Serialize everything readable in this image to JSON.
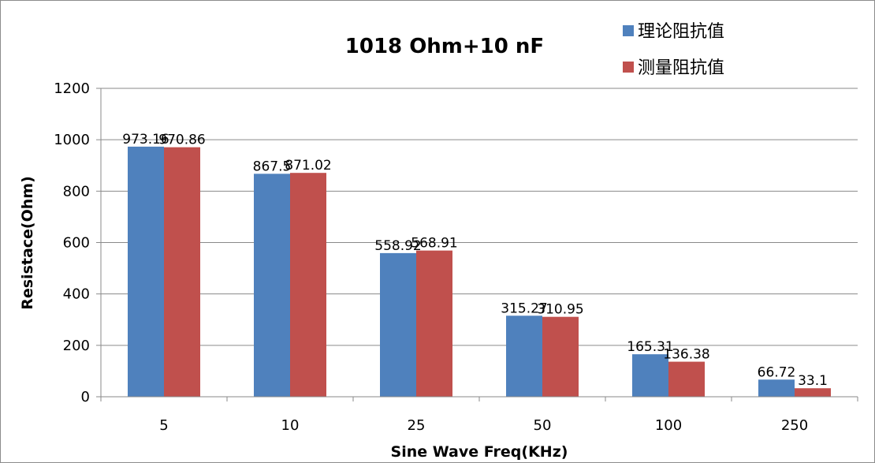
{
  "chart_data": {
    "type": "bar",
    "title": "1018 Ohm+10 nF",
    "xlabel": "Sine Wave Freq(KHz)",
    "ylabel": "Resistace(Ohm)",
    "ylim": [
      0,
      1200
    ],
    "yticks": [
      0,
      200,
      400,
      600,
      800,
      1000,
      1200
    ],
    "grid": true,
    "legend_position": "top-right",
    "categories": [
      "5",
      "10",
      "25",
      "50",
      "100",
      "250"
    ],
    "series": [
      {
        "name": "理论阻抗值",
        "color": "#4f81bd",
        "values": [
          973.16,
          867.5,
          558.92,
          315.27,
          165.31,
          66.72
        ],
        "labels": [
          "973.16",
          "867.5",
          "558.92",
          "315.27",
          "165.31",
          "66.72"
        ]
      },
      {
        "name": "测量阻抗值",
        "color": "#c0504d",
        "values": [
          970.86,
          871.02,
          568.91,
          310.95,
          136.38,
          33.1
        ],
        "labels": [
          "970.86",
          "871.02",
          "568.91",
          "310.95",
          "136.38",
          "33.1"
        ]
      }
    ]
  }
}
